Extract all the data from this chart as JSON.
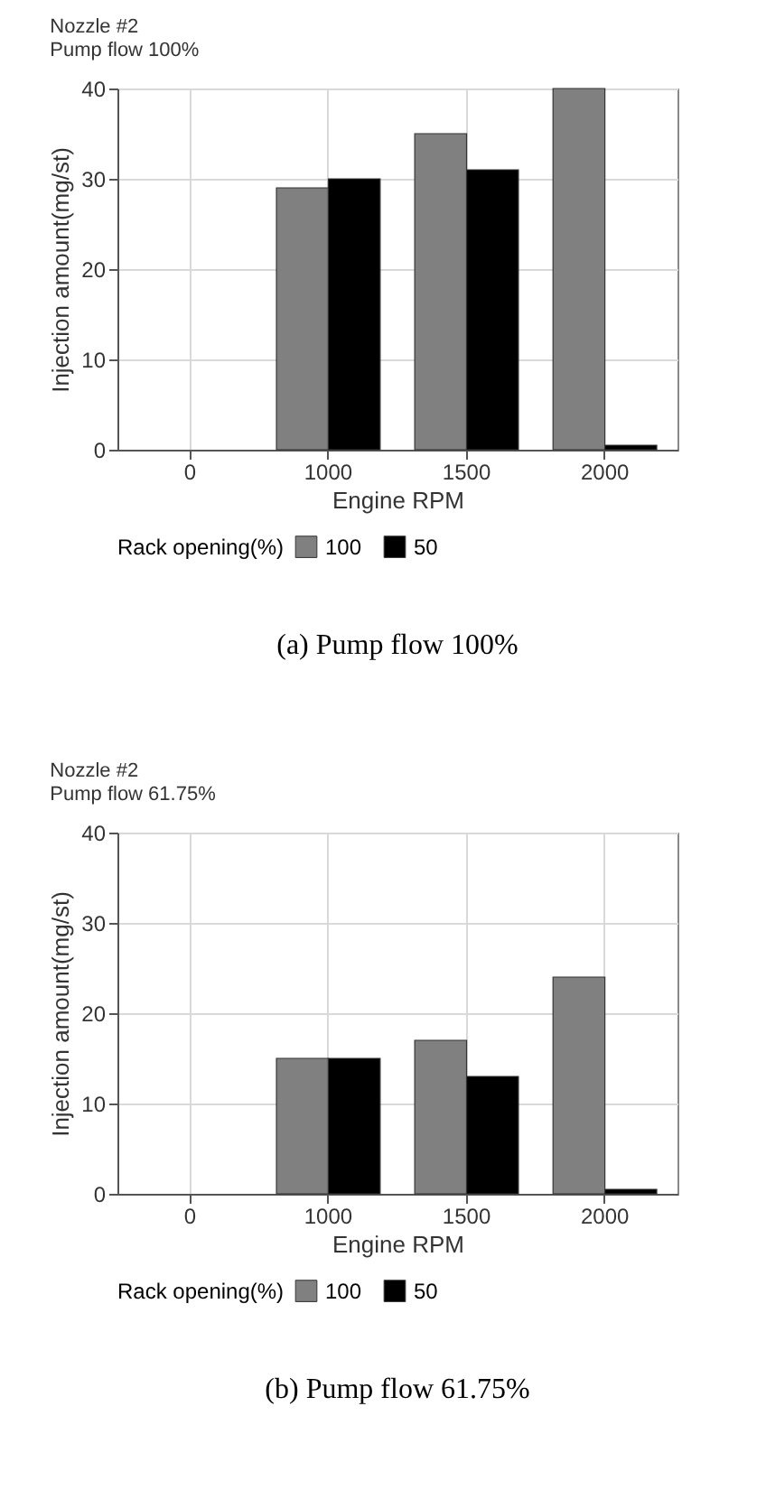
{
  "chart_data": [
    {
      "type": "bar",
      "title": "Nozzle #2",
      "subtitle": "Pump flow 100%",
      "xlabel": "Engine RPM",
      "ylabel": "Injection amount(mg/st)",
      "legend_title": "Rack opening(%)",
      "annotations": [
        "(a) Pump flow 100%"
      ],
      "categories": [
        "0",
        "1000",
        "1500",
        "2000"
      ],
      "series": [
        {
          "name": "100",
          "color": "#808080",
          "values": [
            null,
            29,
            35,
            40
          ]
        },
        {
          "name": "50",
          "color": "#000000",
          "values": [
            null,
            30,
            31,
            0.5
          ]
        }
      ],
      "ylim": [
        0,
        40
      ],
      "yticks": [
        0,
        10,
        20,
        30,
        40
      ],
      "grid": true,
      "legend": "bottom"
    },
    {
      "type": "bar",
      "title": "Nozzle #2",
      "subtitle": "Pump flow 61.75%",
      "xlabel": "Engine RPM",
      "ylabel": "Injection amount(mg/st)",
      "legend_title": "Rack opening(%)",
      "annotations": [
        "(b) Pump flow 61.75%"
      ],
      "categories": [
        "0",
        "1000",
        "1500",
        "2000"
      ],
      "series": [
        {
          "name": "100",
          "color": "#808080",
          "values": [
            null,
            15,
            17,
            24
          ]
        },
        {
          "name": "50",
          "color": "#000000",
          "values": [
            null,
            15,
            13,
            0.5
          ]
        }
      ],
      "ylim": [
        0,
        40
      ],
      "yticks": [
        0,
        10,
        20,
        30,
        40
      ],
      "grid": true,
      "legend": "bottom"
    }
  ]
}
